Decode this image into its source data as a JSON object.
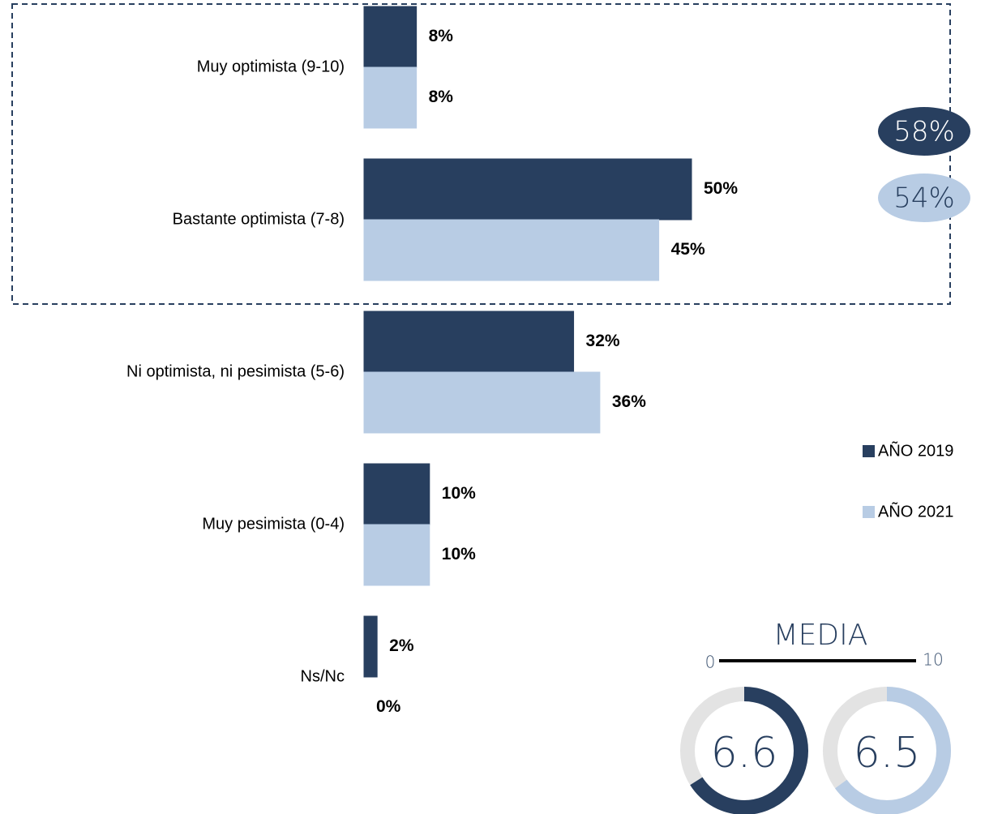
{
  "chart_data": {
    "type": "bar",
    "orientation": "horizontal",
    "categories": [
      "Muy optimista (9-10)",
      "Bastante optimista (7-8)",
      "Ni optimista, ni pesimista (5-6)",
      "Muy pesimista (0-4)",
      "Ns/Nc"
    ],
    "series": [
      {
        "name": "AÑO 2019",
        "color": "#283f5f",
        "values": [
          8,
          50,
          32,
          10,
          2
        ],
        "value_labels": [
          "8%",
          "50%",
          "32%",
          "10%",
          "2%"
        ]
      },
      {
        "name": "AÑO 2021",
        "color": "#b8cce4",
        "values": [
          8,
          45,
          36,
          10,
          0
        ],
        "value_labels": [
          "8%",
          "45%",
          "36%",
          "10%",
          "0%"
        ]
      }
    ],
    "totals": [
      {
        "value": 58,
        "label": "58%"
      },
      {
        "value": 54,
        "label": "54%"
      }
    ],
    "media": {
      "title": "MEDIA",
      "range": [
        0,
        10
      ],
      "values": [
        6.6,
        6.5
      ]
    }
  }
}
